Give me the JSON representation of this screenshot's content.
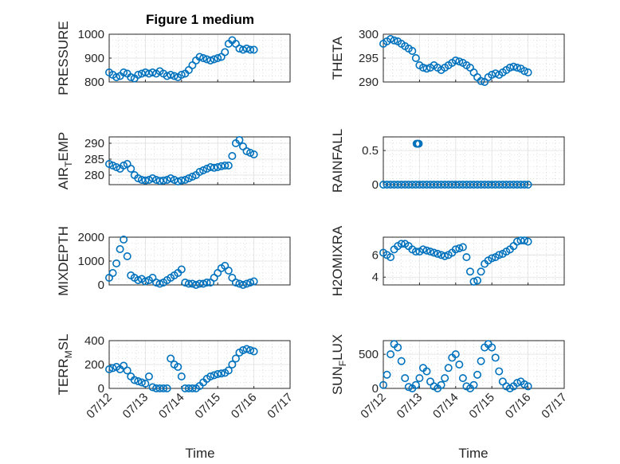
{
  "figure": {
    "title": "Figure 1 medium"
  },
  "chart_data": [
    {
      "type": "scatter",
      "name": "pressure",
      "title": "Figure 1 medium",
      "xlabel": "",
      "ylabel": "PRESSURE",
      "xlim": [
        0,
        5
      ],
      "ylim": [
        800,
        1000
      ],
      "yticks": [
        800,
        900,
        1000
      ],
      "ytick_labels": [
        "800",
        "900",
        "1000"
      ],
      "xticks": [
        0,
        1,
        2,
        3,
        4,
        5
      ],
      "xtick_labels": [],
      "grid": true,
      "marker_color": "#0072BD",
      "x": [
        0.0,
        0.1,
        0.2,
        0.3,
        0.4,
        0.5,
        0.6,
        0.7,
        0.8,
        0.9,
        1.0,
        1.1,
        1.2,
        1.3,
        1.4,
        1.5,
        1.6,
        1.7,
        1.8,
        1.9,
        2.0,
        2.1,
        2.2,
        2.3,
        2.4,
        2.5,
        2.6,
        2.7,
        2.8,
        2.9,
        3.0,
        3.1,
        3.2,
        3.3,
        3.4,
        3.5,
        3.6,
        3.7,
        3.8,
        3.9,
        4.0
      ],
      "y": [
        840,
        830,
        820,
        825,
        840,
        835,
        820,
        815,
        830,
        835,
        840,
        835,
        840,
        835,
        845,
        835,
        825,
        830,
        825,
        820,
        830,
        835,
        850,
        870,
        890,
        905,
        900,
        895,
        890,
        895,
        900,
        905,
        925,
        960,
        975,
        960,
        940,
        935,
        940,
        935,
        935
      ]
    },
    {
      "type": "scatter",
      "name": "theta",
      "xlabel": "",
      "ylabel": "THETA",
      "xlim": [
        0,
        5
      ],
      "ylim": [
        290,
        300
      ],
      "yticks": [
        290,
        295,
        300
      ],
      "ytick_labels": [
        "290",
        "295",
        "300"
      ],
      "xticks": [
        0,
        1,
        2,
        3,
        4,
        5
      ],
      "xtick_labels": [],
      "grid": true,
      "marker_color": "#0072BD",
      "x": [
        0.0,
        0.1,
        0.2,
        0.3,
        0.4,
        0.5,
        0.6,
        0.7,
        0.8,
        0.9,
        1.0,
        1.1,
        1.2,
        1.3,
        1.4,
        1.5,
        1.6,
        1.7,
        1.8,
        1.9,
        2.0,
        2.1,
        2.2,
        2.3,
        2.4,
        2.5,
        2.6,
        2.7,
        2.8,
        2.9,
        3.0,
        3.1,
        3.2,
        3.3,
        3.4,
        3.5,
        3.6,
        3.7,
        3.8,
        3.9,
        4.0
      ],
      "y": [
        298,
        298.5,
        299,
        298.7,
        298.5,
        298,
        297.5,
        297,
        296.5,
        295,
        293.5,
        293,
        292.8,
        293,
        293.5,
        293,
        292.5,
        293,
        293.5,
        294,
        294.5,
        294.3,
        294,
        293.5,
        293,
        292,
        291,
        290.2,
        290,
        291,
        291.5,
        291.8,
        291.5,
        292,
        292.5,
        293,
        293.2,
        293,
        292.8,
        292.3,
        292
      ]
    },
    {
      "type": "scatter",
      "name": "air-temp",
      "xlabel": "",
      "ylabel": "AIR_TEMP",
      "ylabel_parts": [
        "AIR",
        "T",
        "EMP"
      ],
      "xlim": [
        0,
        5
      ],
      "ylim": [
        277,
        292
      ],
      "yticks": [
        280,
        285,
        290
      ],
      "ytick_labels": [
        "280",
        "285",
        "290"
      ],
      "xticks": [
        0,
        1,
        2,
        3,
        4,
        5
      ],
      "xtick_labels": [],
      "grid": true,
      "marker_color": "#0072BD",
      "x": [
        0.0,
        0.1,
        0.2,
        0.3,
        0.4,
        0.5,
        0.6,
        0.7,
        0.8,
        0.9,
        1.0,
        1.1,
        1.2,
        1.3,
        1.4,
        1.5,
        1.6,
        1.7,
        1.8,
        1.9,
        2.0,
        2.1,
        2.2,
        2.3,
        2.4,
        2.5,
        2.6,
        2.7,
        2.8,
        2.9,
        3.0,
        3.1,
        3.2,
        3.3,
        3.4,
        3.5,
        3.6,
        3.7,
        3.8,
        3.9,
        4.0
      ],
      "y": [
        283.5,
        283,
        282.5,
        282,
        283,
        283.5,
        282,
        280,
        279,
        278.5,
        278.3,
        278.5,
        279,
        278.5,
        278.2,
        278.3,
        278.5,
        279,
        278.5,
        278,
        278.3,
        278.5,
        279,
        279.5,
        280,
        281,
        281.5,
        282,
        282.5,
        282.3,
        282.5,
        282.8,
        283,
        283,
        286,
        290,
        291,
        289,
        287.5,
        287,
        286.5
      ]
    },
    {
      "type": "scatter",
      "name": "rainfall",
      "xlabel": "",
      "ylabel": "RAINFALL",
      "xlim": [
        0,
        5
      ],
      "ylim": [
        0,
        0.7
      ],
      "yticks": [
        0,
        0.5
      ],
      "ytick_labels": [
        "0",
        "0.5"
      ],
      "xticks": [
        0,
        1,
        2,
        3,
        4,
        5
      ],
      "xtick_labels": [],
      "grid": true,
      "marker_color": "#0072BD",
      "x": [
        0.0,
        0.1,
        0.2,
        0.3,
        0.4,
        0.5,
        0.6,
        0.7,
        0.8,
        0.9,
        0.92,
        0.95,
        0.98,
        1.0,
        1.1,
        1.2,
        1.3,
        1.4,
        1.5,
        1.6,
        1.7,
        1.8,
        1.9,
        2.0,
        2.1,
        2.2,
        2.3,
        2.4,
        2.5,
        2.6,
        2.7,
        2.8,
        2.9,
        3.0,
        3.1,
        3.2,
        3.3,
        3.4,
        3.5,
        3.6,
        3.7,
        3.8,
        3.9,
        4.0
      ],
      "y": [
        0,
        0,
        0,
        0,
        0,
        0,
        0,
        0,
        0,
        0,
        0.6,
        0.6,
        0.6,
        0,
        0,
        0,
        0,
        0,
        0,
        0,
        0,
        0,
        0,
        0,
        0,
        0,
        0,
        0,
        0,
        0,
        0,
        0,
        0,
        0,
        0,
        0,
        0,
        0,
        0,
        0,
        0,
        0,
        0,
        0
      ]
    },
    {
      "type": "scatter",
      "name": "mixdepth",
      "xlabel": "",
      "ylabel": "MIXDEPTH",
      "xlim": [
        0,
        5
      ],
      "ylim": [
        0,
        2000
      ],
      "yticks": [
        0,
        1000,
        2000
      ],
      "ytick_labels": [
        "0",
        "1000",
        "2000"
      ],
      "xticks": [
        0,
        1,
        2,
        3,
        4,
        5
      ],
      "xtick_labels": [],
      "grid": true,
      "marker_color": "#0072BD",
      "x": [
        0.0,
        0.1,
        0.2,
        0.3,
        0.4,
        0.5,
        0.6,
        0.7,
        0.8,
        0.9,
        1.0,
        1.1,
        1.2,
        1.3,
        1.4,
        1.5,
        1.6,
        1.7,
        1.8,
        1.9,
        2.0,
        2.1,
        2.2,
        2.3,
        2.4,
        2.5,
        2.6,
        2.7,
        2.8,
        2.9,
        3.0,
        3.1,
        3.2,
        3.3,
        3.4,
        3.5,
        3.6,
        3.7,
        3.8,
        3.9,
        4.0
      ],
      "y": [
        300,
        500,
        900,
        1500,
        1900,
        1200,
        400,
        300,
        200,
        250,
        150,
        200,
        300,
        100,
        50,
        100,
        200,
        300,
        400,
        500,
        650,
        100,
        50,
        50,
        0,
        50,
        50,
        100,
        100,
        300,
        500,
        700,
        800,
        600,
        300,
        100,
        50,
        0,
        50,
        100,
        150
      ]
    },
    {
      "type": "scatter",
      "name": "h2omixra",
      "xlabel": "",
      "ylabel": "H2OMIXRA",
      "xlim": [
        0,
        5
      ],
      "ylim": [
        3.3,
        7.6
      ],
      "yticks": [
        4,
        6
      ],
      "ytick_labels": [
        "4",
        "6"
      ],
      "xticks": [
        0,
        1,
        2,
        3,
        4,
        5
      ],
      "xtick_labels": [],
      "grid": true,
      "marker_color": "#0072BD",
      "x": [
        0.0,
        0.1,
        0.2,
        0.3,
        0.4,
        0.5,
        0.6,
        0.7,
        0.8,
        0.9,
        1.0,
        1.1,
        1.2,
        1.3,
        1.4,
        1.5,
        1.6,
        1.7,
        1.8,
        1.9,
        2.0,
        2.1,
        2.2,
        2.3,
        2.4,
        2.5,
        2.6,
        2.7,
        2.8,
        2.9,
        3.0,
        3.1,
        3.2,
        3.3,
        3.4,
        3.5,
        3.6,
        3.7,
        3.8,
        3.9,
        4.0
      ],
      "y": [
        6.2,
        6.0,
        5.8,
        6.5,
        6.8,
        7.0,
        7.0,
        6.8,
        6.5,
        6.3,
        6.3,
        6.5,
        6.4,
        6.3,
        6.2,
        6.1,
        6.0,
        5.9,
        6.0,
        6.2,
        6.5,
        6.6,
        6.7,
        5.8,
        4.5,
        3.6,
        3.7,
        4.5,
        5.2,
        5.5,
        5.7,
        5.8,
        6.0,
        6.1,
        6.3,
        6.5,
        6.8,
        7.2,
        7.3,
        7.3,
        7.2
      ]
    },
    {
      "type": "scatter",
      "name": "terr-msl",
      "xlabel": "",
      "ylabel": "TERR_MSL",
      "ylabel_parts": [
        "TERR",
        "M",
        "SL"
      ],
      "xlim": [
        0,
        5
      ],
      "ylim": [
        0,
        400
      ],
      "yticks": [
        0,
        200,
        400
      ],
      "ytick_labels": [
        "0",
        "200",
        "400"
      ],
      "xticks": [
        0,
        1,
        2,
        3,
        4,
        5
      ],
      "xtick_labels": [
        "07/12",
        "07/13",
        "07/14",
        "07/15",
        "07/16",
        "07/17"
      ],
      "grid": true,
      "marker_color": "#0072BD",
      "x": [
        0.0,
        0.1,
        0.2,
        0.3,
        0.4,
        0.5,
        0.6,
        0.7,
        0.8,
        0.9,
        1.0,
        1.1,
        1.2,
        1.3,
        1.4,
        1.5,
        1.6,
        1.7,
        1.8,
        1.9,
        2.0,
        2.1,
        2.2,
        2.3,
        2.4,
        2.5,
        2.6,
        2.7,
        2.8,
        2.9,
        3.0,
        3.1,
        3.2,
        3.3,
        3.4,
        3.5,
        3.6,
        3.7,
        3.8,
        3.9,
        4.0
      ],
      "y": [
        160,
        170,
        180,
        160,
        190,
        150,
        100,
        70,
        60,
        50,
        40,
        100,
        10,
        0,
        0,
        0,
        0,
        250,
        200,
        180,
        100,
        0,
        0,
        0,
        0,
        20,
        50,
        80,
        100,
        110,
        120,
        125,
        130,
        150,
        200,
        250,
        300,
        320,
        330,
        320,
        310
      ]
    },
    {
      "type": "scatter",
      "name": "sun-flux",
      "xlabel": "",
      "ylabel": "SUN_FLUX",
      "ylabel_parts": [
        "SUN",
        "F",
        "LUX"
      ],
      "xlim": [
        0,
        5
      ],
      "ylim": [
        0,
        700
      ],
      "yticks": [
        0,
        500
      ],
      "ytick_labels": [
        "0",
        "500"
      ],
      "xticks": [
        0,
        1,
        2,
        3,
        4,
        5
      ],
      "xtick_labels": [
        "07/12",
        "07/13",
        "07/14",
        "07/15",
        "07/16",
        "07/17"
      ],
      "grid": true,
      "marker_color": "#0072BD",
      "x": [
        0.0,
        0.1,
        0.2,
        0.3,
        0.4,
        0.5,
        0.6,
        0.7,
        0.8,
        0.9,
        1.0,
        1.1,
        1.2,
        1.3,
        1.4,
        1.5,
        1.6,
        1.7,
        1.8,
        1.9,
        2.0,
        2.1,
        2.2,
        2.3,
        2.4,
        2.5,
        2.6,
        2.7,
        2.8,
        2.9,
        3.0,
        3.1,
        3.2,
        3.3,
        3.4,
        3.5,
        3.6,
        3.7,
        3.8,
        3.9,
        4.0
      ],
      "y": [
        50,
        200,
        500,
        650,
        600,
        400,
        150,
        20,
        0,
        50,
        150,
        300,
        250,
        100,
        30,
        0,
        50,
        150,
        300,
        450,
        500,
        350,
        150,
        30,
        0,
        50,
        200,
        400,
        600,
        650,
        600,
        450,
        250,
        100,
        30,
        0,
        30,
        80,
        100,
        60,
        30
      ]
    }
  ],
  "xaxis": {
    "xlabel": "Time"
  }
}
